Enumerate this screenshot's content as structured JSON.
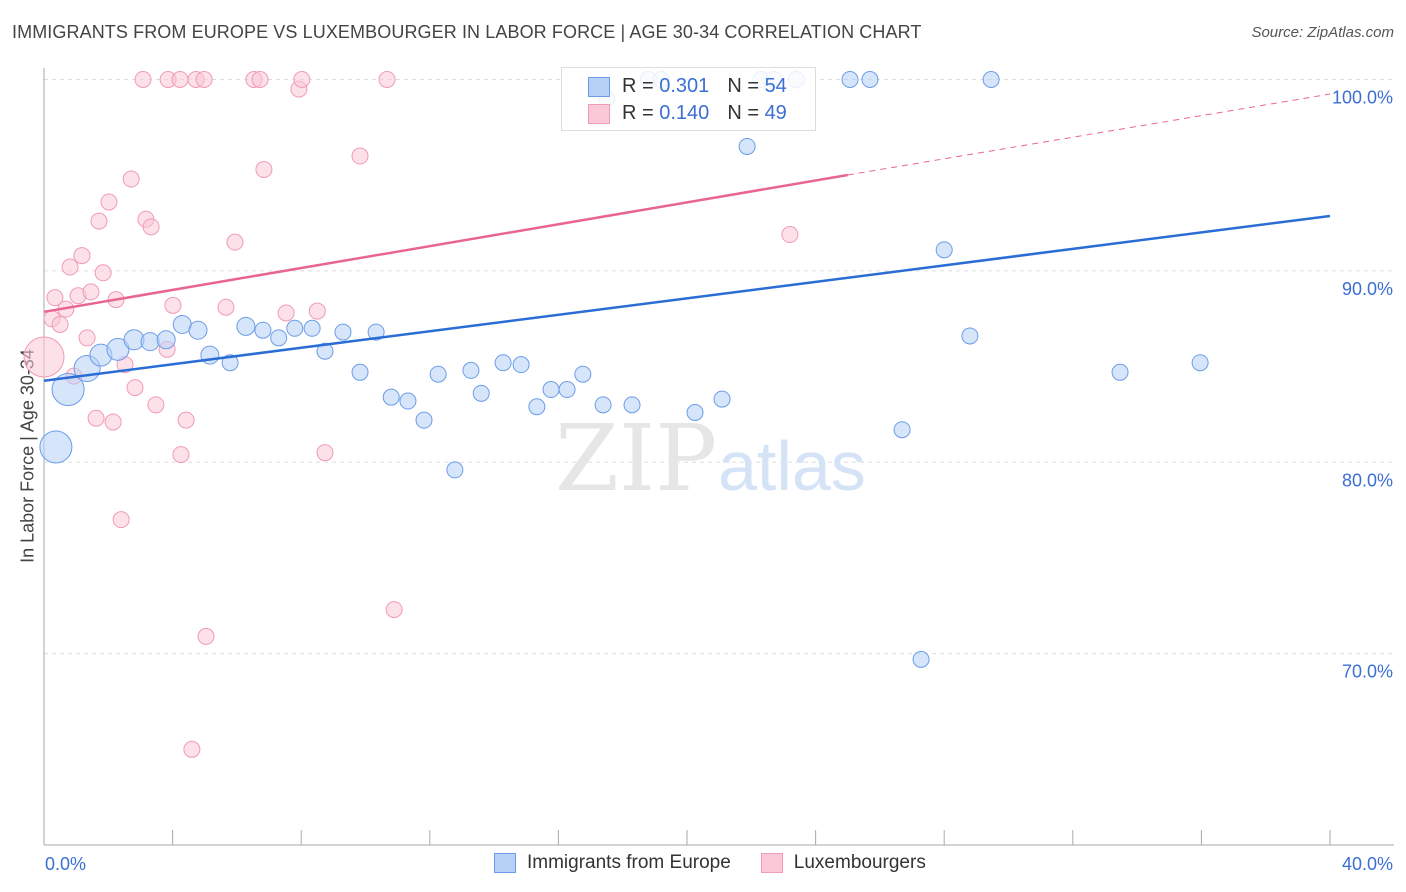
{
  "chart_data": {
    "type": "scatter",
    "title": "IMMIGRANTS FROM EUROPE VS LUXEMBOURGER IN LABOR FORCE | AGE 30-34 CORRELATION CHART",
    "source": "Source: ZipAtlas.com",
    "xlabel": "",
    "ylabel": "In Labor Force | Age 30-34",
    "xlim": [
      0,
      40
    ],
    "ylim": [
      60,
      100
    ],
    "x_tick_labels": [
      "0.0%",
      "40.0%"
    ],
    "y_ticks": [
      100,
      90,
      80,
      70
    ],
    "y_tick_labels": [
      "100.0%",
      "90.0%",
      "80.0%",
      "70.0%"
    ],
    "grid": true,
    "legend_placement": "top-center",
    "watermark": "ZIPatlas",
    "series": [
      {
        "name": "Immigrants from Europe",
        "color": "#6b9de8",
        "line_color": "#2a6dd6",
        "R": "0.301",
        "N": "54",
        "trend": {
          "x": [
            0,
            40
          ],
          "y": [
            84.26,
            92.87
          ]
        },
        "points": [
          [
            0.37,
            80.8,
            16
          ],
          [
            0.75,
            83.8,
            16
          ],
          [
            1.34,
            84.9,
            13
          ],
          [
            1.77,
            85.6,
            11
          ],
          [
            2.3,
            85.9,
            11
          ],
          [
            2.8,
            86.4,
            10
          ],
          [
            3.3,
            86.3,
            9
          ],
          [
            3.8,
            86.4,
            9
          ],
          [
            4.3,
            87.2,
            9
          ],
          [
            4.79,
            86.9,
            9
          ],
          [
            5.16,
            85.6,
            9
          ],
          [
            5.79,
            85.2,
            8
          ],
          [
            6.28,
            87.1,
            9
          ],
          [
            6.81,
            86.9,
            8
          ],
          [
            7.3,
            86.5,
            8
          ],
          [
            7.8,
            87.0,
            8
          ],
          [
            8.34,
            87.0,
            8
          ],
          [
            8.74,
            85.8,
            8
          ],
          [
            9.3,
            86.8,
            8
          ],
          [
            9.83,
            84.7,
            8
          ],
          [
            10.33,
            86.8,
            8
          ],
          [
            10.8,
            83.4,
            8
          ],
          [
            11.32,
            83.2,
            8
          ],
          [
            11.82,
            82.2,
            8
          ],
          [
            12.26,
            84.6,
            8
          ],
          [
            12.78,
            79.6,
            8
          ],
          [
            13.28,
            84.8,
            8
          ],
          [
            13.6,
            83.6,
            8
          ],
          [
            14.28,
            85.2,
            8
          ],
          [
            14.84,
            85.1,
            8
          ],
          [
            15.33,
            82.9,
            8
          ],
          [
            15.77,
            83.8,
            8
          ],
          [
            16.27,
            83.8,
            8
          ],
          [
            16.76,
            84.6,
            8
          ],
          [
            17.39,
            83.0,
            8
          ],
          [
            18.29,
            83.0,
            8
          ],
          [
            20.25,
            82.6,
            8
          ],
          [
            21.09,
            83.3,
            8
          ],
          [
            21.87,
            96.5,
            8
          ],
          [
            25.07,
            100,
            8
          ],
          [
            25.69,
            100,
            8
          ],
          [
            26.69,
            81.7,
            8
          ],
          [
            27.28,
            69.7,
            8
          ],
          [
            28.0,
            91.1,
            8
          ],
          [
            28.8,
            86.6,
            8
          ],
          [
            29.46,
            100,
            8
          ],
          [
            33.47,
            84.7,
            8
          ],
          [
            35.96,
            85.2,
            8
          ],
          [
            18.8,
            100,
            8
          ],
          [
            19.2,
            100,
            8
          ],
          [
            22.3,
            100,
            8
          ],
          [
            22.7,
            100,
            8
          ],
          [
            23.4,
            100,
            8
          ],
          [
            17.5,
            99.0,
            8
          ]
        ]
      },
      {
        "name": "Luxembourgers",
        "color": "#f19bb6",
        "line_color": "#e8658f",
        "R": "0.140",
        "N": "49",
        "trend": {
          "x": [
            0,
            25
          ],
          "y": [
            87.86,
            95.01
          ],
          "dashed_to": {
            "x": 40,
            "y": 99.24
          }
        },
        "points": [
          [
            0,
            85.5,
            20
          ],
          [
            0.34,
            88.6,
            8
          ],
          [
            0.25,
            87.5,
            8
          ],
          [
            0.5,
            87.2,
            8
          ],
          [
            0.68,
            88.0,
            8
          ],
          [
            0.81,
            90.2,
            8
          ],
          [
            1.06,
            88.7,
            8
          ],
          [
            1.18,
            90.8,
            8
          ],
          [
            1.46,
            88.9,
            8
          ],
          [
            1.84,
            89.9,
            8
          ],
          [
            1.34,
            86.5,
            8
          ],
          [
            1.62,
            82.3,
            8
          ],
          [
            2.15,
            82.1,
            8
          ],
          [
            1.71,
            92.6,
            8
          ],
          [
            2.02,
            93.6,
            8
          ],
          [
            2.24,
            88.5,
            8
          ],
          [
            2.52,
            85.1,
            8
          ],
          [
            2.71,
            94.8,
            8
          ],
          [
            2.83,
            83.9,
            8
          ],
          [
            2.4,
            77.0,
            8
          ],
          [
            3.08,
            100,
            8
          ],
          [
            3.17,
            92.7,
            8
          ],
          [
            3.33,
            92.3,
            8
          ],
          [
            3.48,
            83.0,
            8
          ],
          [
            3.86,
            100,
            8
          ],
          [
            4.01,
            88.2,
            8
          ],
          [
            3.83,
            85.9,
            8
          ],
          [
            4.23,
            100,
            8
          ],
          [
            4.26,
            80.4,
            8
          ],
          [
            4.42,
            82.2,
            8
          ],
          [
            4.6,
            65.0,
            8
          ],
          [
            4.73,
            100,
            8
          ],
          [
            4.98,
            100,
            8
          ],
          [
            5.04,
            70.9,
            8
          ],
          [
            5.66,
            88.1,
            8
          ],
          [
            5.94,
            91.5,
            8
          ],
          [
            6.53,
            100,
            8
          ],
          [
            6.72,
            100,
            8
          ],
          [
            6.84,
            95.3,
            8
          ],
          [
            7.53,
            87.8,
            8
          ],
          [
            7.93,
            99.5,
            8
          ],
          [
            8.02,
            100,
            8
          ],
          [
            8.5,
            87.9,
            8
          ],
          [
            8.74,
            80.5,
            8
          ],
          [
            9.83,
            96.0,
            8
          ],
          [
            10.67,
            100,
            8
          ],
          [
            10.89,
            72.3,
            8
          ],
          [
            23.2,
            91.9,
            8
          ],
          [
            0.93,
            84.5,
            8
          ]
        ]
      }
    ],
    "legend": {
      "r_label": "R =",
      "n_label": "N ="
    }
  }
}
